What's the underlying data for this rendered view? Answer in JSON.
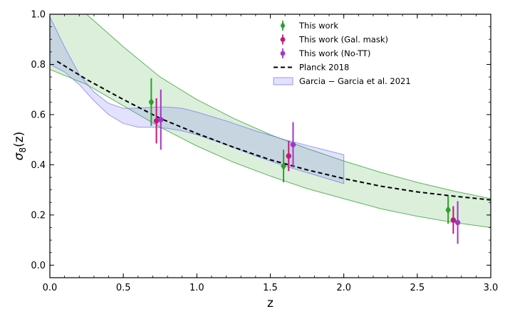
{
  "chart_data": {
    "type": "scatter",
    "xlabel": "z",
    "ylabel_main": "σ",
    "ylabel_sub": "8",
    "ylabel_arg": "(z)",
    "xlim": [
      0.0,
      3.0
    ],
    "ylim": [
      -0.05,
      1.0
    ],
    "x_ticks": [
      0.0,
      0.5,
      1.0,
      1.5,
      2.0,
      2.5,
      3.0
    ],
    "x_tick_labels": [
      "0.0",
      "0.5",
      "1.0",
      "1.5",
      "2.0",
      "2.5",
      "3.0"
    ],
    "y_ticks": [
      0.0,
      0.2,
      0.4,
      0.6,
      0.8,
      1.0
    ],
    "y_tick_labels": [
      "0.0",
      "0.2",
      "0.4",
      "0.6",
      "0.8",
      "1.0"
    ],
    "grid": false,
    "legend_position": "top-right",
    "legend": [
      {
        "label": "This work",
        "marker": "diamond",
        "color": "#2ca02c"
      },
      {
        "label": "This work (Gal. mask)",
        "marker": "circle",
        "color": "#c2187a"
      },
      {
        "label": "This work (No-TT)",
        "marker": "circle",
        "color": "#a235c8"
      },
      {
        "label": "Planck 2018",
        "marker": "dashed-line",
        "color": "#000000"
      },
      {
        "label": "Garcia − Garcia et al. 2021",
        "marker": "band",
        "color": "#7b7bf0"
      }
    ],
    "series": [
      {
        "name": "This work",
        "marker": "diamond",
        "color": "#2ca02c",
        "points": [
          {
            "x": 0.69,
            "y": 0.65,
            "yerr": 0.095
          },
          {
            "x": 1.59,
            "y": 0.395,
            "yerr": 0.065
          },
          {
            "x": 2.71,
            "y": 0.22,
            "yerr": 0.055
          }
        ]
      },
      {
        "name": "This work (Gal. mask)",
        "marker": "circle",
        "color": "#c2187a",
        "points": [
          {
            "x": 0.725,
            "y": 0.575,
            "yerr": 0.09
          },
          {
            "x": 1.625,
            "y": 0.435,
            "yerr": 0.06
          },
          {
            "x": 2.745,
            "y": 0.18,
            "yerr": 0.055
          }
        ]
      },
      {
        "name": "This work (No-TT)",
        "marker": "circle",
        "color": "#a235c8",
        "points": [
          {
            "x": 0.755,
            "y": 0.58,
            "yerr": 0.12
          },
          {
            "x": 1.655,
            "y": 0.48,
            "yerr": 0.09
          },
          {
            "x": 2.775,
            "y": 0.17,
            "yerr": 0.085
          }
        ]
      },
      {
        "name": "Planck 2018",
        "style": "dashed",
        "color": "#000000",
        "x": [
          0.05,
          0.25,
          0.5,
          0.75,
          1.0,
          1.25,
          1.5,
          1.75,
          2.0,
          2.25,
          2.5,
          2.75,
          3.0
        ],
        "y": [
          0.812,
          0.74,
          0.66,
          0.585,
          0.525,
          0.47,
          0.42,
          0.38,
          0.345,
          0.315,
          0.292,
          0.275,
          0.26
        ]
      }
    ],
    "bands": [
      {
        "name": "green constraint band",
        "color": "#2ca02c",
        "x": [
          0.0,
          0.25,
          0.5,
          0.75,
          1.0,
          1.25,
          1.5,
          1.75,
          2.0,
          2.25,
          2.5,
          2.75,
          3.0
        ],
        "upper": [
          1.05,
          1.0,
          0.87,
          0.75,
          0.66,
          0.585,
          0.52,
          0.465,
          0.415,
          0.37,
          0.33,
          0.295,
          0.265
        ],
        "lower": [
          0.78,
          0.72,
          0.635,
          0.55,
          0.475,
          0.41,
          0.355,
          0.305,
          0.265,
          0.225,
          0.195,
          0.17,
          0.15
        ]
      },
      {
        "name": "Garcia − Garcia et al. 2021",
        "color": "#7b7bf0",
        "x": [
          0.0,
          0.1,
          0.2,
          0.3,
          0.4,
          0.5,
          0.6,
          0.7,
          0.8,
          0.9,
          1.0,
          1.2,
          1.4,
          1.6,
          1.8,
          2.0
        ],
        "upper": [
          0.99,
          0.87,
          0.76,
          0.69,
          0.645,
          0.625,
          0.625,
          0.63,
          0.63,
          0.625,
          0.61,
          0.575,
          0.535,
          0.5,
          0.47,
          0.44
        ],
        "lower": [
          0.8,
          0.77,
          0.72,
          0.655,
          0.6,
          0.565,
          0.55,
          0.55,
          0.545,
          0.535,
          0.52,
          0.48,
          0.435,
          0.395,
          0.36,
          0.325
        ]
      }
    ]
  }
}
